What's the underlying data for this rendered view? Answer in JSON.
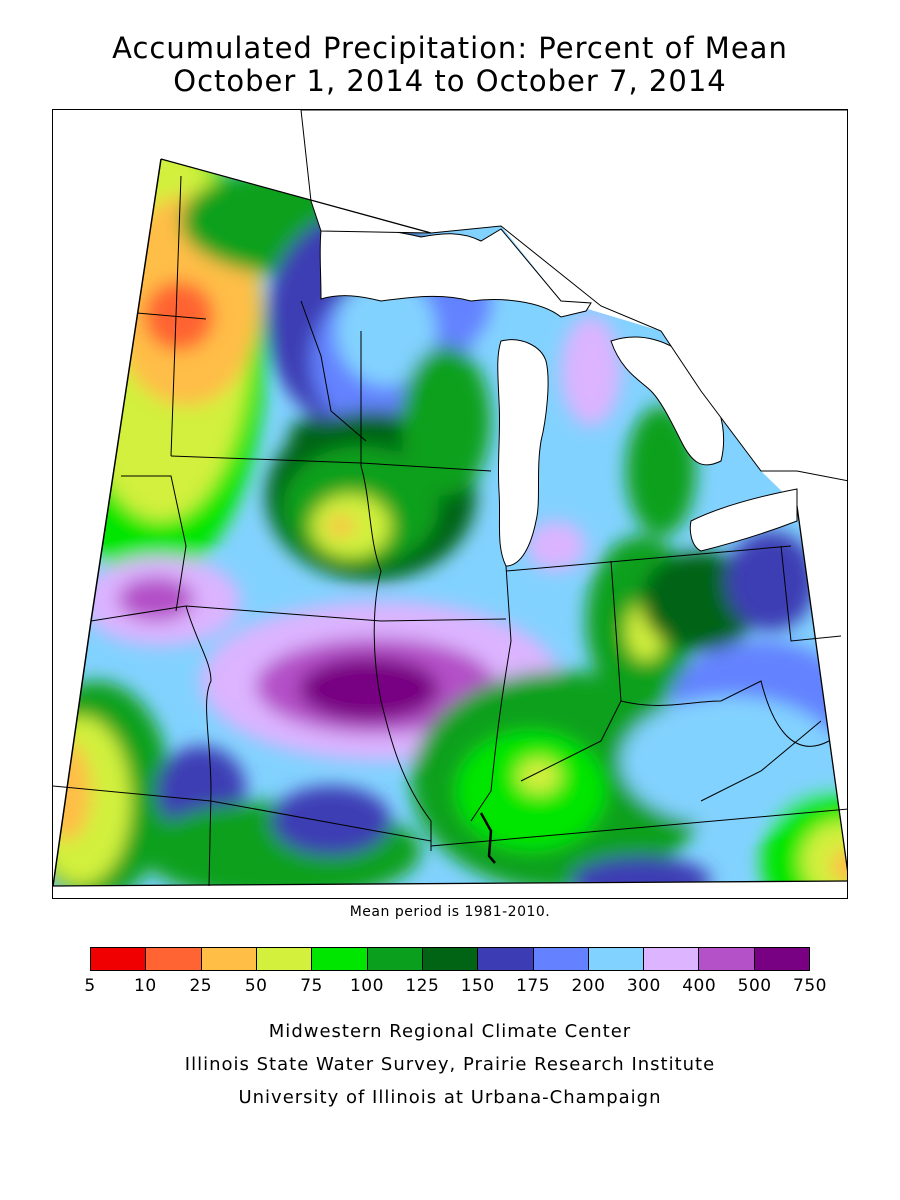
{
  "title": {
    "line1": "Accumulated Precipitation: Percent of Mean",
    "line2": "October 1, 2014 to October 7, 2014"
  },
  "mean_note": "Mean period is 1981-2010.",
  "legend": {
    "colors": [
      "#f00000",
      "#ff6432",
      "#ffbe46",
      "#d2f03c",
      "#00e600",
      "#0aa01e",
      "#006414",
      "#3c3cb4",
      "#6482ff",
      "#82d2ff",
      "#dcb4ff",
      "#b450c8",
      "#780082"
    ],
    "ticks": [
      "5",
      "10",
      "25",
      "50",
      "75",
      "100",
      "125",
      "150",
      "175",
      "200",
      "300",
      "400",
      "500",
      "750"
    ]
  },
  "map": {
    "region": "Midwest",
    "background_color": "#82d2ff",
    "lakes_color": "#ffffff",
    "boundary_color": "#000000"
  },
  "credits": {
    "line1": "Midwestern Regional Climate Center",
    "line2": "Illinois State Water Survey, Prairie Research Institute",
    "line3": "University of Illinois at Urbana-Champaign"
  }
}
